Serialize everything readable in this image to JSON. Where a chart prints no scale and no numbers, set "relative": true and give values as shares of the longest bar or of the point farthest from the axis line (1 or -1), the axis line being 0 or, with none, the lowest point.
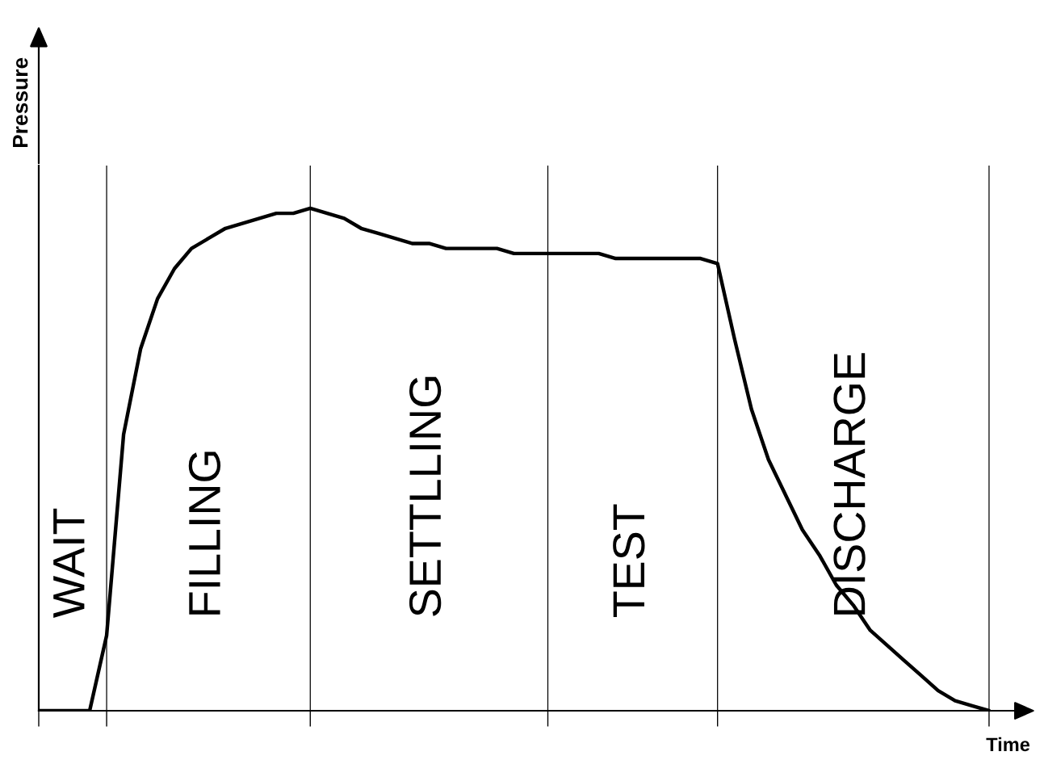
{
  "chart_data": {
    "type": "line",
    "relative": true,
    "xlabel": "Time",
    "ylabel": "Pressure",
    "categories": [
      null,
      null,
      null,
      null,
      null,
      null,
      null,
      null,
      null,
      null,
      null,
      null,
      null,
      null,
      null,
      null,
      null,
      null,
      null,
      null,
      null,
      null,
      null,
      null,
      null,
      null,
      null,
      null,
      null,
      null,
      null,
      null,
      null,
      null,
      null,
      null,
      null,
      null,
      null,
      null,
      null,
      null,
      null,
      null,
      null,
      null,
      null,
      null,
      null,
      null,
      null,
      null,
      null,
      null,
      null,
      null,
      null
    ],
    "series": [
      {
        "color": "#000000",
        "values": [
          0,
          0,
          0,
          0,
          0.15,
          0.55,
          0.72,
          0.82,
          0.88,
          0.92,
          0.94,
          0.96,
          0.97,
          0.98,
          0.99,
          0.99,
          1.0,
          0.99,
          0.98,
          0.96,
          0.95,
          0.94,
          0.93,
          0.93,
          0.92,
          0.92,
          0.92,
          0.92,
          0.91,
          0.91,
          0.91,
          0.91,
          0.91,
          0.91,
          0.9,
          0.9,
          0.9,
          0.9,
          0.9,
          0.9,
          0.89,
          0.74,
          0.6,
          0.5,
          0.43,
          0.36,
          0.31,
          0.25,
          0.21,
          0.16,
          0.13,
          0.1,
          0.07,
          0.04,
          0.02,
          0.01,
          0
        ]
      }
    ],
    "annotations": [
      "WAIT",
      "FILLING",
      "SETTLLING",
      "TEST",
      "DISCHARGE"
    ],
    "grid": "x",
    "marker": "none",
    "line_style": "solid"
  }
}
